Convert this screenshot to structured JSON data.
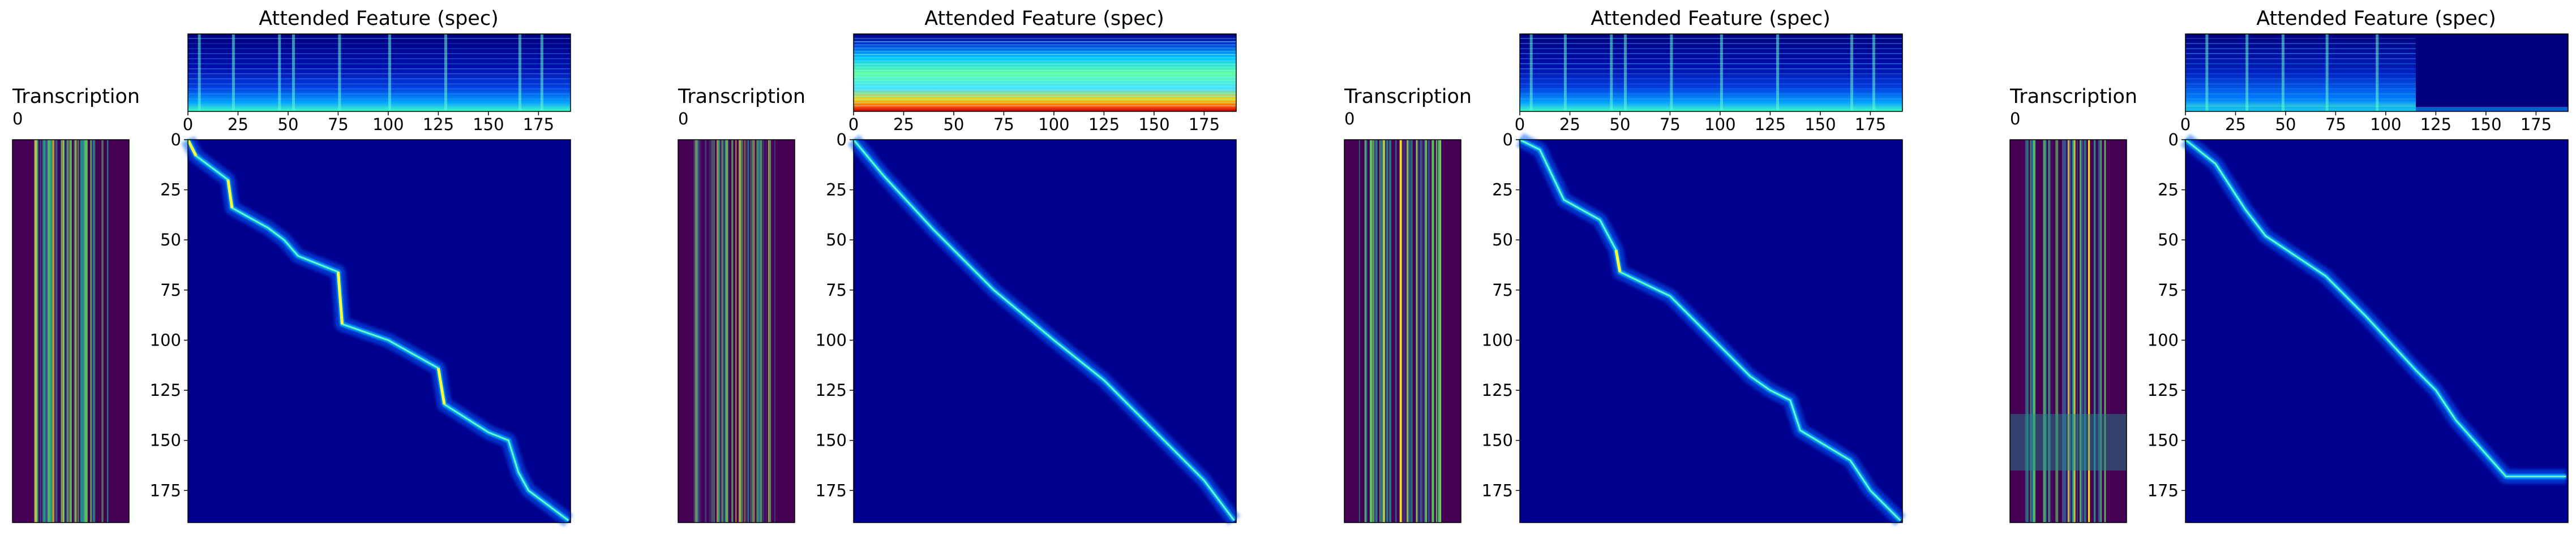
{
  "chart_data": {
    "type": "heatmap",
    "panels": [
      {
        "transcription": {
          "title": "Transcription",
          "x_ticks": [
            0
          ],
          "pattern": "clean"
        },
        "attended_feature": {
          "title": "Attended Feature (spec)",
          "x_ticks": [
            0,
            25,
            50,
            75,
            100,
            125,
            150,
            175
          ],
          "x_range": [
            0,
            191
          ],
          "style": "harmonic"
        },
        "attention": {
          "y_ticks": [
            0,
            25,
            50,
            75,
            100,
            125,
            150,
            175
          ],
          "y_range": [
            0,
            191
          ],
          "x_range": [
            0,
            191
          ],
          "path": [
            [
              0,
              0
            ],
            [
              4,
              8
            ],
            [
              20,
              20
            ],
            [
              22,
              34
            ],
            [
              40,
              44
            ],
            [
              48,
              50
            ],
            [
              55,
              58
            ],
            [
              75,
              66
            ],
            [
              77,
              92
            ],
            [
              100,
              100
            ],
            [
              125,
              114
            ],
            [
              128,
              132
            ],
            [
              150,
              146
            ],
            [
              160,
              150
            ],
            [
              165,
              166
            ],
            [
              170,
              175
            ],
            [
              190,
              190
            ]
          ]
        }
      },
      {
        "transcription": {
          "title": "Transcription",
          "x_ticks": [
            0
          ],
          "pattern": "faint"
        },
        "attended_feature": {
          "title": "Attended Feature (spec)",
          "x_ticks": [
            0,
            25,
            50,
            75,
            100,
            125,
            150,
            175
          ],
          "x_range": [
            0,
            191
          ],
          "style": "dense"
        },
        "attention": {
          "y_ticks": [
            0,
            25,
            50,
            75,
            100,
            125,
            150,
            175
          ],
          "y_range": [
            0,
            191
          ],
          "x_range": [
            0,
            191
          ],
          "path": [
            [
              0,
              0
            ],
            [
              15,
              18
            ],
            [
              40,
              45
            ],
            [
              70,
              75
            ],
            [
              100,
              100
            ],
            [
              125,
              120
            ],
            [
              150,
              145
            ],
            [
              175,
              170
            ],
            [
              190,
              190
            ]
          ]
        }
      },
      {
        "transcription": {
          "title": "Transcription",
          "x_ticks": [
            0
          ],
          "pattern": "clean"
        },
        "attended_feature": {
          "title": "Attended Feature (spec)",
          "x_ticks": [
            0,
            25,
            50,
            75,
            100,
            125,
            150,
            175
          ],
          "x_range": [
            0,
            191
          ],
          "style": "harmonic"
        },
        "attention": {
          "y_ticks": [
            0,
            25,
            50,
            75,
            100,
            125,
            150,
            175
          ],
          "y_range": [
            0,
            191
          ],
          "x_range": [
            0,
            191
          ],
          "path": [
            [
              0,
              0
            ],
            [
              10,
              5
            ],
            [
              22,
              30
            ],
            [
              40,
              40
            ],
            [
              48,
              55
            ],
            [
              50,
              66
            ],
            [
              75,
              78
            ],
            [
              85,
              88
            ],
            [
              95,
              98
            ],
            [
              105,
              108
            ],
            [
              115,
              118
            ],
            [
              125,
              125
            ],
            [
              135,
              130
            ],
            [
              140,
              145
            ],
            [
              165,
              160
            ],
            [
              175,
              175
            ],
            [
              190,
              190
            ]
          ]
        }
      },
      {
        "transcription": {
          "title": "Transcription",
          "x_ticks": [
            0
          ],
          "pattern": "noisy"
        },
        "attended_feature": {
          "title": "Attended Feature (spec)",
          "x_ticks": [
            0,
            25,
            50,
            75,
            100,
            125,
            150,
            175
          ],
          "x_range": [
            0,
            191
          ],
          "style": "truncated"
        },
        "attention": {
          "y_ticks": [
            0,
            25,
            50,
            75,
            100,
            125,
            150,
            175
          ],
          "y_range": [
            0,
            191
          ],
          "x_range": [
            0,
            191
          ],
          "path": [
            [
              0,
              0
            ],
            [
              15,
              12
            ],
            [
              30,
              35
            ],
            [
              40,
              48
            ],
            [
              70,
              68
            ],
            [
              90,
              88
            ],
            [
              115,
              115
            ],
            [
              125,
              125
            ],
            [
              135,
              140
            ],
            [
              160,
              168
            ],
            [
              190,
              168
            ]
          ]
        }
      }
    ],
    "colormaps": {
      "attention": "jet",
      "spectrogram": "jet",
      "transcription": "viridis"
    }
  }
}
